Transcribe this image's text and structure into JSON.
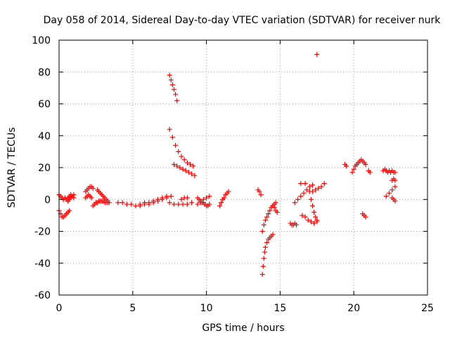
{
  "chart_data": {
    "type": "scatter",
    "title": "Day 058 of 2014, Sidereal Day-to-day VTEC variation (SDTVAR) for receiver nurk",
    "xlabel": "GPS time / hours",
    "ylabel": "SDTVAR / TECUs",
    "xlim": [
      0,
      25
    ],
    "ylim": [
      -60,
      100
    ],
    "xticks": [
      "0",
      "5",
      "10",
      "15",
      "20",
      "25"
    ],
    "yticks": [
      "-60",
      "-40",
      "-20",
      "0",
      "20",
      "40",
      "60",
      "80",
      "100"
    ],
    "grid": true,
    "marker": "+",
    "color": "#ff0000",
    "segments": [
      {
        "x": [
          0.0,
          0.1,
          0.2,
          0.3,
          0.4,
          0.5,
          0.6,
          0.7,
          0.8,
          0.9,
          1.0
        ],
        "y": [
          3,
          2,
          1,
          0,
          1,
          0,
          -1,
          0,
          1,
          2,
          3
        ]
      },
      {
        "x": [
          0.0,
          0.1,
          0.2,
          0.3,
          0.4,
          0.5,
          0.6,
          0.7
        ],
        "y": [
          -7,
          -9,
          -11,
          -11,
          -10,
          -9,
          -8,
          -7
        ]
      },
      {
        "x": [
          0.6,
          0.7,
          0.8,
          0.9,
          1.0
        ],
        "y": [
          1,
          2,
          3,
          2,
          1
        ]
      },
      {
        "x": [
          1.8,
          1.9,
          2.0,
          2.1,
          2.2,
          2.3
        ],
        "y": [
          5,
          6,
          7,
          8,
          8,
          7
        ]
      },
      {
        "x": [
          1.8,
          1.9,
          2.0,
          2.1,
          2.2
        ],
        "y": [
          1,
          2,
          3,
          2,
          1
        ]
      },
      {
        "x": [
          2.3,
          2.4,
          2.5,
          2.6,
          2.7,
          2.8,
          2.9,
          3.0,
          3.1,
          3.2,
          3.3,
          3.4
        ],
        "y": [
          -4,
          -3,
          -2,
          -2,
          -1,
          -1,
          -1,
          -1,
          -2,
          -2,
          -2,
          -2
        ]
      },
      {
        "x": [
          2.6,
          2.7,
          2.8,
          2.9,
          3.0,
          3.1,
          3.2,
          3.3
        ],
        "y": [
          6,
          5,
          4,
          3,
          2,
          1,
          0,
          -1
        ]
      },
      {
        "x": [
          4.0,
          4.3,
          4.6,
          4.9,
          5.2,
          5.5,
          5.8,
          6.1,
          6.4,
          6.7,
          7.0,
          7.3
        ],
        "y": [
          -2,
          -2,
          -3,
          -3,
          -4,
          -4,
          -3,
          -3,
          -2,
          -1,
          0,
          1
        ]
      },
      {
        "x": [
          5.5,
          5.8,
          6.1,
          6.4,
          6.7,
          7.0,
          7.3,
          7.6
        ],
        "y": [
          -3,
          -2,
          -2,
          -1,
          0,
          1,
          2,
          2
        ]
      },
      {
        "x": [
          7.5,
          7.6,
          7.7,
          7.8,
          7.9,
          8.0
        ],
        "y": [
          78,
          75,
          72,
          69,
          66,
          62
        ]
      },
      {
        "x": [
          7.5,
          7.7,
          7.9,
          8.1,
          8.3,
          8.5,
          8.7,
          8.9,
          9.1
        ],
        "y": [
          44,
          39,
          34,
          30,
          27,
          25,
          23,
          22,
          21
        ]
      },
      {
        "x": [
          7.8,
          8.0,
          8.2,
          8.4,
          8.6,
          8.8,
          9.0,
          9.2
        ],
        "y": [
          22,
          21,
          20,
          19,
          18,
          17,
          16,
          15
        ]
      },
      {
        "x": [
          7.5,
          7.8,
          8.1,
          8.4,
          8.7,
          9.0
        ],
        "y": [
          -2,
          -3,
          -3,
          -3,
          -3,
          -2
        ]
      },
      {
        "x": [
          8.3,
          8.5,
          8.7
        ],
        "y": [
          0,
          1,
          1
        ]
      },
      {
        "x": [
          9.4,
          9.5,
          9.6,
          9.7,
          9.8,
          9.9,
          10.0,
          10.1,
          10.2
        ],
        "y": [
          1,
          0,
          -1,
          -2,
          -2,
          -3,
          -4,
          -4,
          -3
        ]
      },
      {
        "x": [
          9.4,
          9.6,
          9.8,
          10.0,
          10.2
        ],
        "y": [
          -3,
          -2,
          0,
          1,
          2
        ]
      },
      {
        "x": [
          10.9,
          11.0,
          11.1,
          11.2,
          11.3,
          11.4,
          11.5
        ],
        "y": [
          -4,
          -2,
          0,
          1,
          3,
          4,
          5
        ]
      },
      {
        "x": [
          13.5,
          13.6,
          13.7
        ],
        "y": [
          6,
          5,
          3
        ]
      },
      {
        "x": [
          13.8,
          13.9,
          14.0,
          14.1,
          14.2,
          14.3,
          14.4,
          14.5,
          14.6,
          14.7
        ],
        "y": [
          -20,
          -16,
          -13,
          -11,
          -9,
          -7,
          -5,
          -4,
          -3,
          -2
        ]
      },
      {
        "x": [
          13.8,
          13.85,
          13.9,
          13.95,
          14.0,
          14.1,
          14.2,
          14.3,
          14.4,
          14.5
        ],
        "y": [
          -47,
          -42,
          -37,
          -33,
          -30,
          -27,
          -25,
          -24,
          -23,
          -22
        ]
      },
      {
        "x": [
          14.5,
          14.6,
          14.7,
          14.8
        ],
        "y": [
          -4,
          -5,
          -7,
          -8
        ]
      },
      {
        "x": [
          15.7,
          15.8,
          15.9,
          16.0,
          16.1
        ],
        "y": [
          -15,
          -16,
          -16,
          -15,
          -16
        ]
      },
      {
        "x": [
          16.0,
          16.2,
          16.4,
          16.6,
          16.8,
          17.0,
          17.2
        ],
        "y": [
          -2,
          0,
          2,
          4,
          6,
          8,
          9
        ]
      },
      {
        "x": [
          16.5,
          16.7,
          16.9,
          17.1,
          17.3,
          17.5
        ],
        "y": [
          -10,
          -11,
          -13,
          -14,
          -15,
          -14
        ]
      },
      {
        "x": [
          17.0,
          17.1,
          17.2,
          17.3,
          17.4,
          17.5
        ],
        "y": [
          5,
          0,
          -4,
          -8,
          -11,
          -13
        ]
      },
      {
        "x": [
          16.4,
          16.7
        ],
        "y": [
          10,
          10
        ]
      },
      {
        "x": [
          17.2,
          17.4,
          17.6,
          17.8,
          18.0
        ],
        "y": [
          5,
          6,
          7,
          8,
          10
        ]
      },
      {
        "x": [
          17.5
        ],
        "y": [
          91
        ]
      },
      {
        "x": [
          19.4,
          19.5
        ],
        "y": [
          22,
          21
        ]
      },
      {
        "x": [
          19.9,
          20.0,
          20.1,
          20.2,
          20.3
        ],
        "y": [
          17,
          19,
          21,
          22,
          23
        ]
      },
      {
        "x": [
          20.4,
          20.5,
          20.6,
          20.7,
          20.8
        ],
        "y": [
          24,
          25,
          24,
          23,
          22
        ]
      },
      {
        "x": [
          20.6,
          20.7,
          20.8
        ],
        "y": [
          -9,
          -10,
          -11
        ]
      },
      {
        "x": [
          21.0,
          21.1
        ],
        "y": [
          18,
          17
        ]
      },
      {
        "x": [
          22.0,
          22.1,
          22.2,
          22.3,
          22.4,
          22.5,
          22.6,
          22.7,
          22.8
        ],
        "y": [
          18,
          19,
          18,
          17,
          18,
          17,
          18,
          17,
          17
        ]
      },
      {
        "x": [
          22.2,
          22.4,
          22.6,
          22.8
        ],
        "y": [
          2,
          4,
          6,
          8
        ]
      },
      {
        "x": [
          22.6,
          22.7,
          22.8
        ],
        "y": [
          12,
          13,
          12
        ]
      },
      {
        "x": [
          22.6,
          22.7,
          22.8
        ],
        "y": [
          1,
          0,
          -1
        ]
      }
    ]
  }
}
